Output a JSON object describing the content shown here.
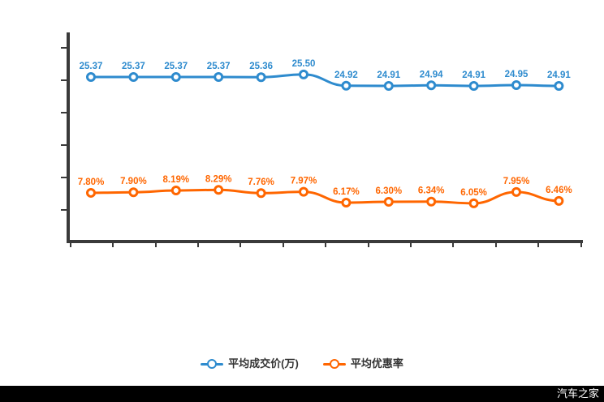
{
  "chart_data": {
    "type": "line",
    "x": [
      1,
      2,
      3,
      4,
      5,
      6,
      7,
      8,
      9,
      10,
      11,
      12
    ],
    "x_tick_labels_visible": false,
    "y_tick_labels_visible": false,
    "grid": false,
    "legend_position": "bottom",
    "axis_color": "#3a3a3a",
    "series": [
      {
        "name": "平均成交价(万)",
        "color": "#2e8bce",
        "values": [
          25.37,
          25.37,
          25.37,
          25.37,
          25.36,
          25.5,
          24.92,
          24.91,
          24.94,
          24.91,
          24.95,
          24.91
        ],
        "labels": [
          "25.37",
          "25.37",
          "25.37",
          "25.37",
          "25.36",
          "25.50",
          "24.92",
          "24.91",
          "24.94",
          "24.91",
          "24.95",
          "24.91"
        ]
      },
      {
        "name": "平均优惠率",
        "color": "#ff6600",
        "values": [
          7.8,
          7.9,
          8.19,
          8.29,
          7.76,
          7.97,
          6.17,
          6.3,
          6.34,
          6.05,
          7.95,
          6.46
        ],
        "labels": [
          "7.80%",
          "7.90%",
          "8.19%",
          "8.29%",
          "7.76%",
          "7.97%",
          "6.17%",
          "6.30%",
          "6.34%",
          "6.05%",
          "7.95%",
          "6.46%"
        ]
      }
    ]
  },
  "watermark": "汽车之家"
}
